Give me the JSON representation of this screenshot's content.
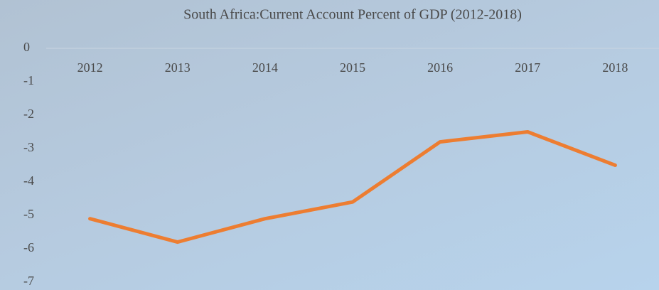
{
  "chart_data": {
    "type": "line",
    "title": "South Africa:Current Account Percent of GDP (2012-2018)",
    "categories": [
      "2012",
      "2013",
      "2014",
      "2015",
      "2016",
      "2017",
      "2018"
    ],
    "series": [
      {
        "name": "Current Account Percent of GDP",
        "color": "#ed7d31",
        "values": [
          -5.1,
          -5.8,
          -5.1,
          -4.6,
          -2.8,
          -2.5,
          -3.5
        ]
      }
    ],
    "ylim": [
      -7,
      0
    ],
    "yticks": [
      0,
      -1,
      -2,
      -3,
      -4,
      -5,
      -6,
      -7
    ]
  }
}
